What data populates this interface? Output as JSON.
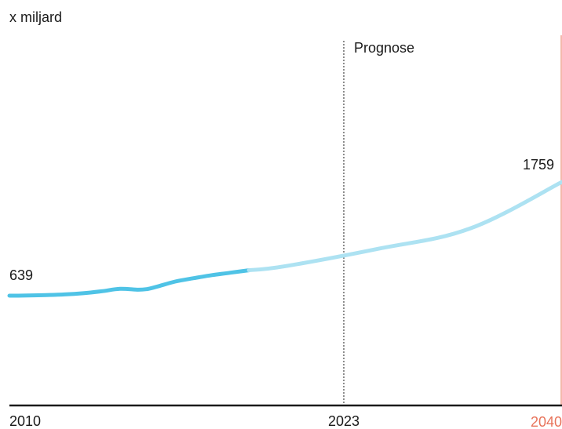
{
  "chart_data": {
    "type": "line",
    "ylabel": "x miljard",
    "forecast_label": "Prognose",
    "forecast_start": 2023,
    "xlim": [
      2010,
      2040
    ],
    "x_ticks": [
      "2010",
      "2023",
      "2040"
    ],
    "end_labels": {
      "start": "639",
      "end": "1759"
    },
    "series": [
      {
        "x": [
          2010,
          2011,
          2012,
          2013,
          2014,
          2015,
          2016,
          2017,
          2017.5,
          2018,
          2019,
          2020,
          2021,
          2022,
          2023,
          2025,
          2030,
          2035,
          2040
        ],
        "values": [
          639,
          641,
          645,
          651,
          663,
          682,
          706,
          698,
          705,
          727,
          778,
          811,
          841,
          865,
          889,
          930,
          1100,
          1300,
          1759
        ]
      }
    ],
    "colors": {
      "history": "#4fc3e6",
      "forecast": "#ade2f2",
      "final_tick": "#e8735a",
      "axis": "#1a1a1a"
    }
  }
}
